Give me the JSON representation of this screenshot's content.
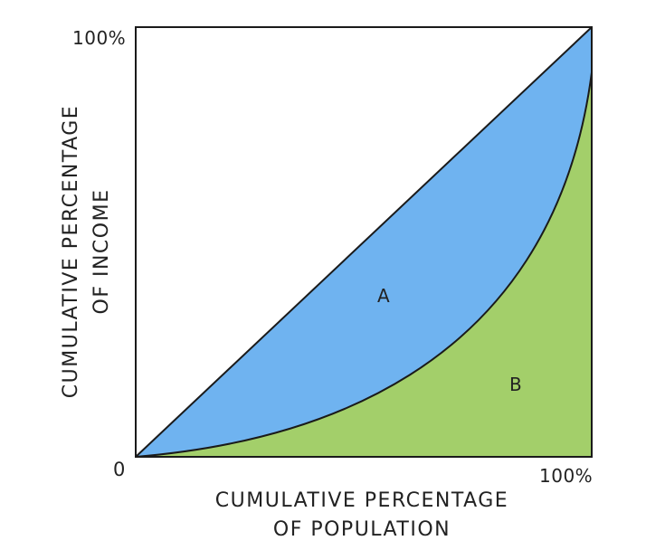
{
  "diagram": {
    "type": "lorenz-curve",
    "y_axis": {
      "max_label": "100%",
      "title_line1": "CUMULATIVE PERCENTAGE",
      "title_line2": "OF INCOME"
    },
    "x_axis": {
      "max_label": "100%",
      "title_line1": "CUMULATIVE PERCENTAGE",
      "title_line2": "OF POPULATION"
    },
    "origin_label": "0",
    "regions": {
      "a": {
        "label": "A",
        "color": "#6fb3f0"
      },
      "b": {
        "label": "B",
        "color": "#a3cf6a"
      }
    },
    "line_color": "#1a1a1a"
  }
}
